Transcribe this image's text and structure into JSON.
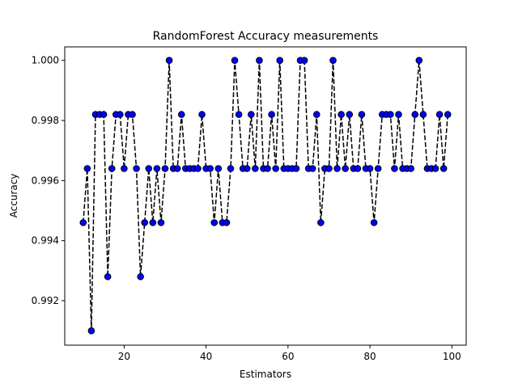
{
  "chart_data": {
    "type": "line",
    "title": "RandomForest Accuracy measurements",
    "xlabel": "Estimators",
    "ylabel": "Accuracy",
    "xlim": [
      5.5,
      103.5
    ],
    "ylim": [
      0.99052,
      1.00045
    ],
    "xticks": [
      20,
      40,
      60,
      80,
      100
    ],
    "yticks": [
      0.992,
      0.994,
      0.996,
      0.998,
      1.0
    ],
    "ytick_labels": [
      "0.992",
      "0.994",
      "0.996",
      "0.998",
      "1.000"
    ],
    "grid": false,
    "line_color": "#000000",
    "line_style": "dashed",
    "marker_face": "#0000ff",
    "marker_edge": "#000000",
    "series": [
      {
        "x": [
          10,
          11,
          12,
          13,
          14,
          15,
          16,
          17,
          18,
          19,
          20,
          21,
          22,
          23,
          24,
          25,
          26,
          27,
          28,
          29,
          30,
          31,
          32,
          33,
          34,
          35,
          36,
          37,
          38,
          39,
          40,
          41,
          42,
          43,
          44,
          45,
          46,
          47,
          48,
          49,
          50,
          51,
          52,
          53,
          54,
          55,
          56,
          57,
          58,
          59,
          60,
          61,
          62,
          63,
          64,
          65,
          66,
          67,
          68,
          69,
          70,
          71,
          72,
          73,
          74,
          75,
          76,
          77,
          78,
          79,
          80,
          81,
          82,
          83,
          84,
          85,
          86,
          87,
          88,
          89,
          90,
          91,
          92,
          93,
          94,
          95,
          96,
          97,
          98,
          99
        ],
        "values": [
          0.9946,
          0.9964,
          0.991,
          0.9982,
          0.9982,
          0.9982,
          0.9928,
          0.9964,
          0.9982,
          0.9982,
          0.9964,
          0.9982,
          0.9982,
          0.9964,
          0.9928,
          0.9946,
          0.9964,
          0.9946,
          0.9964,
          0.9946,
          0.9964,
          1.0,
          0.9964,
          0.9964,
          0.9982,
          0.9964,
          0.9964,
          0.9964,
          0.9964,
          0.9982,
          0.9964,
          0.9964,
          0.9946,
          0.9964,
          0.9946,
          0.9946,
          0.9964,
          1.0,
          0.9982,
          0.9964,
          0.9964,
          0.9982,
          0.9964,
          1.0,
          0.9964,
          0.9964,
          0.9982,
          0.9964,
          1.0,
          0.9964,
          0.9964,
          0.9964,
          0.9964,
          1.0,
          1.0,
          0.9964,
          0.9964,
          0.9982,
          0.9946,
          0.9964,
          0.9964,
          1.0,
          0.9964,
          0.9982,
          0.9964,
          0.9982,
          0.9964,
          0.9964,
          0.9982,
          0.9964,
          0.9964,
          0.9946,
          0.9964,
          0.9982,
          0.9982,
          0.9982,
          0.9964,
          0.9982,
          0.9964,
          0.9964,
          0.9964,
          0.9982,
          1.0,
          0.9982,
          0.9964,
          0.9964,
          0.9964,
          0.9982,
          0.9964,
          0.9982
        ]
      }
    ]
  }
}
